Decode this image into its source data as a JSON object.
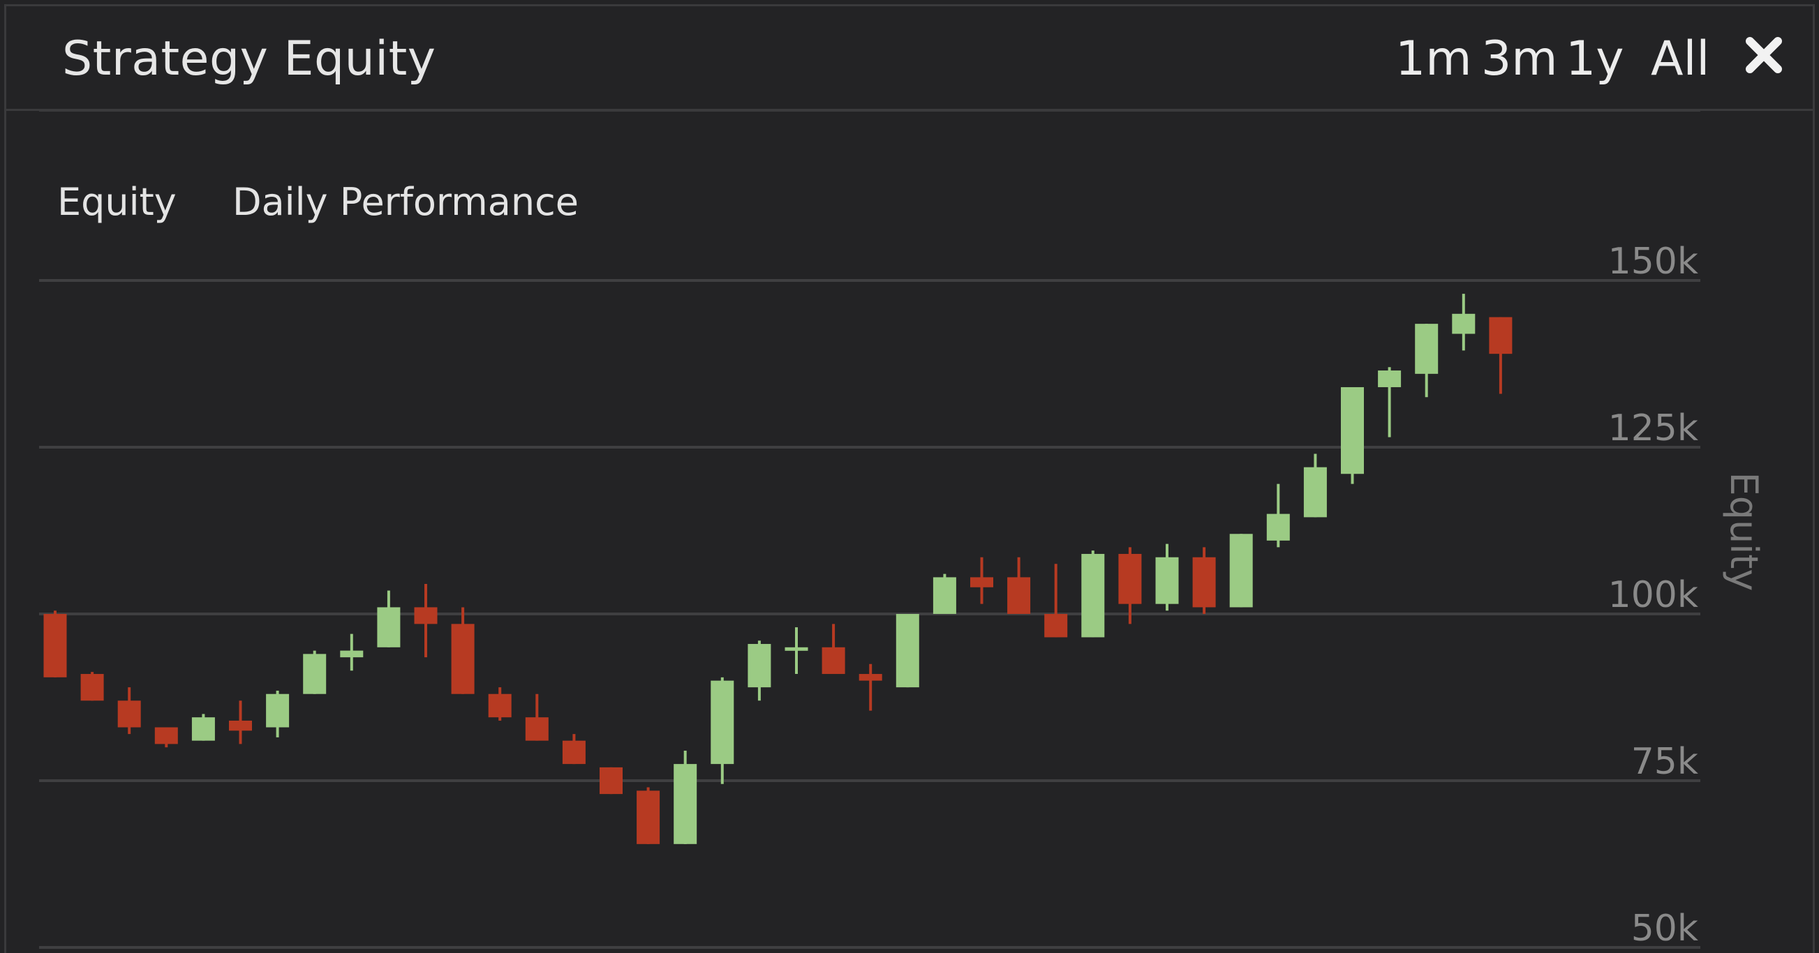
{
  "header": {
    "title": "Strategy Equity",
    "ranges": [
      "1m",
      "3m",
      "1y",
      "All"
    ]
  },
  "chart_tabs": [
    "Equity",
    "Daily Performance"
  ],
  "colors": {
    "up": "#9bcb84",
    "down": "#b73a22",
    "grid": "#3f3f41",
    "axis_text": "#8a8a8a",
    "background": "#232325"
  },
  "icons": {
    "close": "close-x-icon"
  },
  "chart_data": {
    "type": "candlestick",
    "ylabel": "Equity",
    "ylim": [
      50000,
      150000
    ],
    "yticks": [
      {
        "value": 150000,
        "label": "150k"
      },
      {
        "value": 125000,
        "label": "125k"
      },
      {
        "value": 100000,
        "label": "100k"
      },
      {
        "value": 75000,
        "label": "75k"
      },
      {
        "value": 50000,
        "label": "50k"
      }
    ],
    "grid": true,
    "candles": [
      {
        "open": 100000,
        "high": 100500,
        "low": 90500,
        "close": 90500
      },
      {
        "open": 91000,
        "high": 91300,
        "low": 87000,
        "close": 87000
      },
      {
        "open": 87000,
        "high": 89000,
        "low": 82000,
        "close": 83000
      },
      {
        "open": 83000,
        "high": 83000,
        "low": 80000,
        "close": 80500
      },
      {
        "open": 81000,
        "high": 85000,
        "low": 81000,
        "close": 84500
      },
      {
        "open": 84000,
        "high": 87000,
        "low": 80500,
        "close": 82500
      },
      {
        "open": 83000,
        "high": 88500,
        "low": 81500,
        "close": 88000
      },
      {
        "open": 88000,
        "high": 94500,
        "low": 88000,
        "close": 94000
      },
      {
        "open": 93500,
        "high": 97000,
        "low": 91500,
        "close": 94500
      },
      {
        "open": 95000,
        "high": 103500,
        "low": 95000,
        "close": 101000
      },
      {
        "open": 101000,
        "high": 104500,
        "low": 93500,
        "close": 98500
      },
      {
        "open": 98500,
        "high": 101000,
        "low": 88000,
        "close": 88000
      },
      {
        "open": 88000,
        "high": 89000,
        "low": 84000,
        "close": 84500
      },
      {
        "open": 84500,
        "high": 88000,
        "low": 81000,
        "close": 81000
      },
      {
        "open": 81000,
        "high": 82000,
        "low": 77500,
        "close": 77500
      },
      {
        "open": 77000,
        "high": 77000,
        "low": 73000,
        "close": 73000
      },
      {
        "open": 73500,
        "high": 74000,
        "low": 65500,
        "close": 65500
      },
      {
        "open": 65500,
        "high": 79500,
        "low": 65500,
        "close": 77500
      },
      {
        "open": 77500,
        "high": 90500,
        "low": 74500,
        "close": 90000
      },
      {
        "open": 89000,
        "high": 96000,
        "low": 87000,
        "close": 95500
      },
      {
        "open": 94500,
        "high": 98000,
        "low": 91000,
        "close": 95000
      },
      {
        "open": 95000,
        "high": 98500,
        "low": 91500,
        "close": 91000
      },
      {
        "open": 91000,
        "high": 92500,
        "low": 85500,
        "close": 90000
      },
      {
        "open": 89000,
        "high": 100000,
        "low": 89000,
        "close": 100000
      },
      {
        "open": 100000,
        "high": 106000,
        "low": 100000,
        "close": 105500
      },
      {
        "open": 105500,
        "high": 108500,
        "low": 101500,
        "close": 104000
      },
      {
        "open": 105500,
        "high": 108500,
        "low": 100000,
        "close": 100000
      },
      {
        "open": 100000,
        "high": 107500,
        "low": 96500,
        "close": 96500
      },
      {
        "open": 96500,
        "high": 109500,
        "low": 96500,
        "close": 109000
      },
      {
        "open": 109000,
        "high": 110000,
        "low": 98500,
        "close": 101500
      },
      {
        "open": 101500,
        "high": 110500,
        "low": 100500,
        "close": 108500
      },
      {
        "open": 108500,
        "high": 110000,
        "low": 100000,
        "close": 101000
      },
      {
        "open": 101000,
        "high": 112000,
        "low": 101000,
        "close": 112000
      },
      {
        "open": 111000,
        "high": 119500,
        "low": 110000,
        "close": 115000
      },
      {
        "open": 114500,
        "high": 124000,
        "low": 114500,
        "close": 122000
      },
      {
        "open": 121000,
        "high": 134000,
        "low": 119500,
        "close": 134000
      },
      {
        "open": 134000,
        "high": 137000,
        "low": 126500,
        "close": 136500
      },
      {
        "open": 136000,
        "high": 143500,
        "low": 132500,
        "close": 143500
      },
      {
        "open": 142000,
        "high": 148000,
        "low": 139500,
        "close": 145000
      },
      {
        "open": 144500,
        "high": 144500,
        "low": 133000,
        "close": 139000
      }
    ]
  }
}
